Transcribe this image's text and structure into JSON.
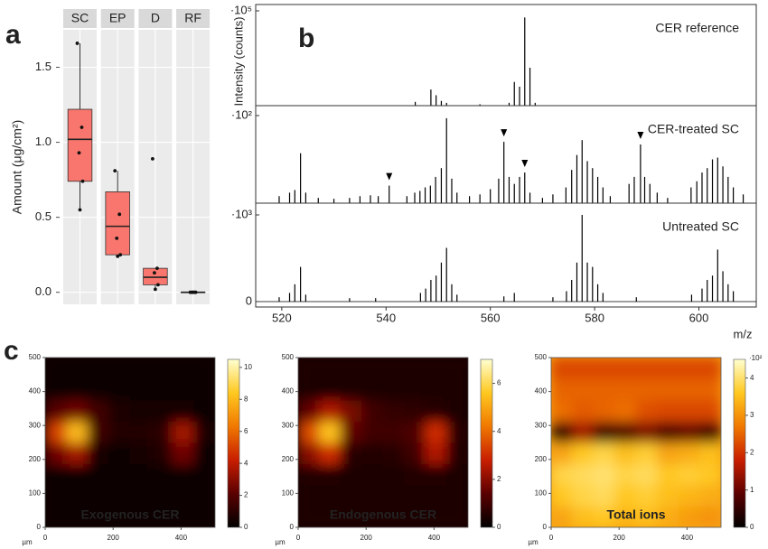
{
  "chart_data": [
    {
      "type": "box",
      "panel": "a",
      "ylabel": "Amount (μg/cm²)",
      "categories": [
        "SC",
        "EP",
        "D",
        "RF"
      ],
      "color": "#f8766d",
      "ylim": [
        -0.08,
        1.75
      ],
      "yticks": [
        {
          "value": 0,
          "label": "0.0"
        },
        {
          "value": 0.5,
          "label": "0.5"
        },
        {
          "value": 1,
          "label": "1.0"
        },
        {
          "value": 1.5,
          "label": "1.5"
        }
      ],
      "grid": true,
      "boxes": [
        {
          "whisker_low": 0.55,
          "q1": 0.74,
          "median": 1.02,
          "q3": 1.22,
          "whisker_high": 1.66,
          "points": [
            1.66,
            1.1,
            0.93,
            0.74,
            0.55
          ]
        },
        {
          "whisker_low": 0.24,
          "q1": 0.25,
          "median": 0.44,
          "q3": 0.67,
          "whisker_high": 0.81,
          "points": [
            0.81,
            0.52,
            0.36,
            0.25,
            0.24
          ]
        },
        {
          "whisker_low": 0.02,
          "q1": 0.05,
          "median": 0.1,
          "q3": 0.16,
          "whisker_high": 0.16,
          "points": [
            0.89,
            0.16,
            0.13,
            0.05,
            0.02
          ]
        },
        {
          "whisker_low": 0,
          "q1": 0,
          "median": 0,
          "q3": 0,
          "whisker_high": 0,
          "points": [
            0,
            0,
            0,
            0,
            0
          ]
        }
      ]
    },
    {
      "type": "spectrum",
      "panel": "b",
      "ylabel": "Intensity (counts)",
      "xlabel": "m/z",
      "color": "#000000",
      "xlim": [
        515,
        611
      ],
      "xticks": [
        520,
        540,
        560,
        580,
        600
      ],
      "subplots": [
        {
          "title": "CER reference",
          "ylim": [
            0,
            100000
          ],
          "yticks": [
            {
              "value": 100000,
              "label": "·10⁵"
            }
          ],
          "x": [
            545.6,
            548.6,
            549.6,
            550.6,
            551.6,
            558,
            563.6,
            564.6,
            565.6,
            566.6,
            567.6,
            568.6
          ],
          "values": [
            4000,
            17000,
            11000,
            5000,
            3000,
            1500,
            3000,
            25000,
            20000,
            93000,
            40000,
            3000
          ]
        },
        {
          "title": "CER-treated SC",
          "ylim": [
            0,
            100
          ],
          "yticks": [
            {
              "value": 100,
              "label": "·10²"
            }
          ],
          "x": [
            519.5,
            521.5,
            522.5,
            523.6,
            524.6,
            527,
            530,
            533,
            535,
            537,
            538.5,
            540.6,
            544,
            545.5,
            546.5,
            547.5,
            548.5,
            549.5,
            550.6,
            551.6,
            552.6,
            553.6,
            556,
            558,
            560,
            561.6,
            562.6,
            563.6,
            564.6,
            565.6,
            566.6,
            567.6,
            570,
            572,
            574.5,
            575.6,
            576.6,
            577.6,
            578.6,
            579.6,
            580.6,
            581.6,
            583,
            586.6,
            587.6,
            588.8,
            589.6,
            590.6,
            592,
            594,
            598.5,
            599.6,
            600.6,
            601.6,
            602.6,
            603.6,
            604.6,
            605.6,
            606.6,
            608.5
          ],
          "values": [
            8,
            12,
            15,
            57,
            12,
            6,
            5,
            6,
            8,
            9,
            8,
            20,
            8,
            12,
            14,
            18,
            20,
            30,
            40,
            97,
            28,
            12,
            8,
            10,
            16,
            28,
            70,
            30,
            22,
            30,
            35,
            12,
            6,
            10,
            18,
            38,
            55,
            72,
            48,
            40,
            30,
            18,
            8,
            22,
            30,
            67,
            30,
            22,
            12,
            6,
            18,
            25,
            35,
            40,
            50,
            52,
            42,
            30,
            18,
            10
          ],
          "markers": [
            540.6,
            562.6,
            566.6,
            588.8
          ]
        },
        {
          "title": "Untreated SC",
          "ylim": [
            0,
            1000
          ],
          "yticks": [
            0,
            {
              "value": 1000,
              "label": "·10³"
            }
          ],
          "x": [
            519.5,
            521.5,
            522.5,
            523.6,
            524.6,
            533,
            538,
            546.6,
            547.6,
            548.6,
            549.6,
            550.6,
            551.6,
            552.6,
            553.6,
            562.6,
            564.6,
            572,
            574.6,
            575.6,
            576.6,
            577.6,
            578.6,
            579.6,
            580.6,
            581.6,
            588,
            598.6,
            600.6,
            601.6,
            602.6,
            603.6,
            604.6,
            605.6,
            606.6
          ],
          "values": [
            50,
            100,
            200,
            400,
            80,
            40,
            40,
            100,
            150,
            250,
            300,
            450,
            620,
            200,
            80,
            60,
            100,
            50,
            120,
            250,
            450,
            1000,
            450,
            400,
            200,
            100,
            50,
            80,
            150,
            250,
            300,
            600,
            350,
            200,
            120
          ]
        }
      ]
    },
    {
      "type": "heatmap",
      "panel": "c",
      "title": "Exogenous CER",
      "xlabel": "µm",
      "xlim": [
        0,
        500
      ],
      "ylim": [
        0,
        500
      ],
      "xticks": [
        0,
        200,
        400
      ],
      "yticks": [
        0,
        100,
        200,
        300,
        400,
        500
      ],
      "clim": [
        0,
        10.5
      ],
      "cticks": [
        0,
        2,
        4,
        6,
        8,
        10
      ],
      "colormap": [
        "#000000",
        "#5a0000",
        "#c81e00",
        "#f07800",
        "#ffc820",
        "#ffffd0"
      ],
      "values": [
        [
          0.2,
          0.2,
          0.2,
          0.2,
          0.2,
          0.2,
          0.2,
          0.2
        ],
        [
          0.3,
          0.2,
          0.2,
          0.2,
          0.2,
          0.2,
          0.2,
          0.2
        ],
        [
          0.4,
          0.3,
          0.2,
          0.2,
          0.3,
          0.3,
          0.3,
          0.2
        ],
        [
          2.5,
          3.5,
          0.5,
          0.4,
          0.5,
          0.8,
          2.5,
          0.4
        ],
        [
          5,
          8,
          1.5,
          0.8,
          0.8,
          1,
          3.5,
          0.6
        ],
        [
          2,
          2.5,
          1.5,
          0.7,
          0.5,
          0.5,
          0.5,
          0.3
        ],
        [
          0.4,
          0.3,
          0.3,
          0.3,
          0.3,
          0.3,
          0.3,
          0.3
        ],
        [
          0.3,
          0.3,
          0.3,
          0.3,
          0.3,
          0.3,
          0.3,
          0.3
        ]
      ]
    },
    {
      "type": "heatmap",
      "title": "Endogenous CER",
      "xlabel": "µm",
      "xlim": [
        0,
        500
      ],
      "ylim": [
        0,
        500
      ],
      "xticks": [
        0,
        200,
        400
      ],
      "yticks": [
        0,
        100,
        200,
        300,
        400,
        500
      ],
      "clim": [
        0,
        7
      ],
      "cticks": [
        0,
        2,
        4,
        6
      ],
      "colormap": [
        "#000000",
        "#5a0000",
        "#c81e00",
        "#f07800",
        "#ffc820",
        "#ffffd0"
      ],
      "values": [
        [
          0.4,
          0.4,
          0.4,
          0.4,
          0.4,
          0.4,
          0.4,
          0.4
        ],
        [
          0.4,
          0.4,
          0.4,
          0.4,
          0.4,
          0.4,
          0.4,
          0.4
        ],
        [
          0.5,
          0.5,
          0.4,
          0.4,
          0.4,
          0.5,
          0.5,
          0.4
        ],
        [
          2,
          3,
          0.6,
          0.5,
          0.6,
          1,
          2.5,
          0.5
        ],
        [
          3.5,
          5.5,
          1.5,
          1,
          1,
          1.2,
          3,
          0.6
        ],
        [
          1.5,
          2.5,
          1.8,
          1,
          0.8,
          0.7,
          0.6,
          0.4
        ],
        [
          0.4,
          0.4,
          0.4,
          0.4,
          0.4,
          0.4,
          0.4,
          0.4
        ],
        [
          0.4,
          0.4,
          0.4,
          0.4,
          0.4,
          0.4,
          0.4,
          0.4
        ]
      ]
    },
    {
      "type": "heatmap",
      "title": "Total ions",
      "xlabel": "µm",
      "xlim": [
        0,
        500
      ],
      "ylim": [
        0,
        500
      ],
      "xticks": [
        0,
        200,
        400
      ],
      "yticks": [
        0,
        100,
        200,
        300,
        400,
        500
      ],
      "clim": [
        0,
        4.5
      ],
      "cticks": [
        0,
        1,
        2,
        3,
        4
      ],
      "cbar_label": "·10²",
      "colormap": [
        "#000000",
        "#5a0000",
        "#c81e00",
        "#f07800",
        "#ffc820",
        "#ffffd0"
      ],
      "values": [
        [
          3.2,
          3.5,
          3.6,
          3.4,
          3.5,
          3.3,
          3.1,
          3
        ],
        [
          3.6,
          3.8,
          3.9,
          3.6,
          3.7,
          3.5,
          3.4,
          3.3
        ],
        [
          3.8,
          3.9,
          4,
          3.8,
          3.9,
          3.6,
          3.7,
          3.6
        ],
        [
          3.2,
          3.6,
          3.8,
          3.5,
          3.7,
          3.2,
          3.3,
          3.5
        ],
        [
          0.5,
          1.5,
          0.6,
          0.8,
          1.2,
          0.8,
          1,
          0.7
        ],
        [
          2.6,
          2.4,
          2.5,
          2.6,
          2.3,
          2.2,
          2.2,
          2.2
        ],
        [
          2.5,
          2.5,
          2.5,
          2.5,
          2.5,
          2.5,
          2.5,
          2.5
        ],
        [
          2.2,
          2.2,
          2.2,
          2.2,
          2.2,
          2.2,
          2.2,
          2.2
        ]
      ]
    }
  ]
}
